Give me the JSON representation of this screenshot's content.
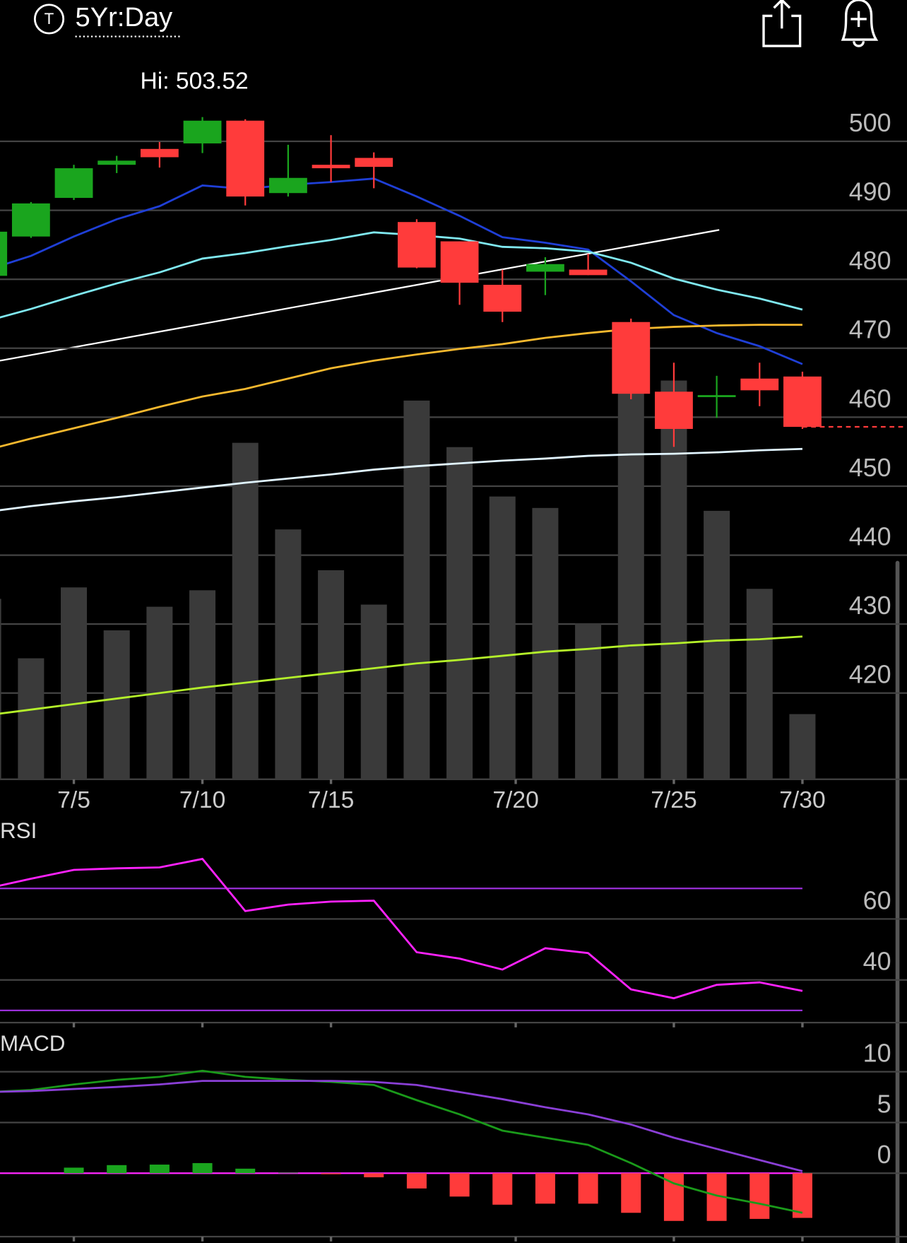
{
  "header": {
    "icon": "T",
    "range": "5Yr:Day"
  },
  "chart_data": [
    {
      "type": "candlestick",
      "annotation": "Hi: 503.52",
      "x": [
        0,
        1,
        2,
        3,
        4,
        5,
        6,
        7,
        8,
        9,
        10,
        11,
        12,
        13,
        14,
        15,
        16,
        17,
        18,
        19
      ],
      "open": [
        480.5,
        486.2,
        491.8,
        496.6,
        498.9,
        499.7,
        503.0,
        492.5,
        496.6,
        497.6,
        488.3,
        485.5,
        479.2,
        481.1,
        481.4,
        473.8,
        463.7,
        463.0,
        465.6,
        465.9
      ],
      "high": [
        487.2,
        491.2,
        496.6,
        497.9,
        499.9,
        503.52,
        503.2,
        499.5,
        500.9,
        498.4,
        488.7,
        485.5,
        481.4,
        483.2,
        483.7,
        474.3,
        467.9,
        466.0,
        467.9,
        466.6
      ],
      "low": [
        480.0,
        486.0,
        491.5,
        495.4,
        496.2,
        498.3,
        490.7,
        492.0,
        494.1,
        493.2,
        481.6,
        476.3,
        473.8,
        477.7,
        480.6,
        462.6,
        455.7,
        459.9,
        461.6,
        458.3
      ],
      "close": [
        486.9,
        491.0,
        496.1,
        497.2,
        497.7,
        503.0,
        492.0,
        494.7,
        496.1,
        496.3,
        481.7,
        479.5,
        475.3,
        482.2,
        480.6,
        463.4,
        458.3,
        463.2,
        463.9,
        458.6
      ],
      "up_color": "#1aa51e",
      "down_color": "#ff3b3b",
      "series": [
        {
          "color": "#1f3fd6",
          "values": [
            481.4,
            483.4,
            486.2,
            488.7,
            490.6,
            493.6,
            493.1,
            493.7,
            494.1,
            494.6,
            492.0,
            489.2,
            486.1,
            485.3,
            484.3,
            479.7,
            474.8,
            472.2,
            470.3,
            467.7
          ]
        },
        {
          "color": "#7fe8f0",
          "values": [
            474.0,
            475.7,
            477.6,
            479.4,
            481.0,
            483.0,
            483.8,
            484.8,
            485.7,
            486.8,
            486.4,
            485.9,
            484.7,
            484.5,
            484.0,
            482.4,
            480.1,
            478.5,
            477.2,
            475.6
          ]
        },
        {
          "color": "#f5b82e",
          "values": [
            455.3,
            456.9,
            458.4,
            459.9,
            461.5,
            463.0,
            464.1,
            465.6,
            467.1,
            468.2,
            469.1,
            469.9,
            470.6,
            471.5,
            472.2,
            472.8,
            473.1,
            473.3,
            473.4,
            473.4
          ]
        },
        {
          "color": "#e0f4ff",
          "values": [
            446.3,
            447.1,
            447.8,
            448.4,
            449.1,
            449.8,
            450.5,
            451.1,
            451.7,
            452.4,
            452.9,
            453.3,
            453.7,
            454.0,
            454.4,
            454.6,
            454.7,
            454.9,
            455.2,
            455.4
          ]
        },
        {
          "color": "#b4f02a",
          "values": [
            416.8,
            417.6,
            418.4,
            419.2,
            420.0,
            420.8,
            421.5,
            422.2,
            422.9,
            423.6,
            424.3,
            424.8,
            425.4,
            426.0,
            426.4,
            426.9,
            427.2,
            427.6,
            427.8,
            428.2
          ]
        }
      ],
      "volume": {
        "color": "#3a3a3a",
        "axis": "y2",
        "values": [
          25.2,
          16.9,
          26.8,
          20.8,
          24.1,
          26.4,
          47.0,
          34.9,
          29.2,
          24.4,
          52.9,
          46.4,
          39.5,
          37.9,
          21.8,
          55.9,
          55.7,
          37.5,
          26.6,
          9.1
        ]
      },
      "xlim": [
        0.277,
        21.44
      ],
      "xticks": [
        {
          "value": 2,
          "label": "7/5"
        },
        {
          "value": 5,
          "label": "7/10"
        },
        {
          "value": 8,
          "label": "7/15"
        },
        {
          "value": 12.31,
          "label": "7/20"
        },
        {
          "value": 16,
          "label": "7/25"
        },
        {
          "value": 19,
          "label": "7/30"
        }
      ],
      "ylim": [
        407.5,
        511.3
      ],
      "yticks": [
        420,
        430,
        440,
        450,
        460,
        470,
        480,
        490,
        500
      ],
      "y2lim": [
        0,
        100
      ],
      "grid": true
    },
    {
      "type": "line",
      "title": "RSI",
      "x": [
        0,
        1,
        2,
        3,
        4,
        5,
        6,
        7,
        8,
        9,
        10,
        11,
        12,
        13,
        14,
        15,
        16,
        17,
        18,
        19
      ],
      "series": [
        {
          "color": "#ff22ff",
          "values": [
            70.1,
            73.2,
            76.1,
            76.6,
            76.9,
            79.7,
            62.6,
            64.7,
            65.7,
            66.0,
            49.1,
            47.0,
            43.4,
            50.4,
            48.8,
            36.9,
            34.0,
            38.4,
            39.2,
            36.4
          ]
        }
      ],
      "levels": [
        70,
        30
      ],
      "level_color": "#9b30d9",
      "xlim": [
        0.277,
        21.44
      ],
      "ylim": [
        26,
        91
      ],
      "yticks": [
        40,
        60
      ],
      "grid": true
    },
    {
      "type": "macd",
      "title": "MACD",
      "x": [
        0,
        1,
        2,
        3,
        4,
        5,
        6,
        7,
        8,
        9,
        10,
        11,
        12,
        13,
        14,
        15,
        16,
        17,
        18,
        19
      ],
      "series": [
        {
          "color": "#1a9a1a",
          "values": [
            8.0,
            8.2,
            8.75,
            9.2,
            9.5,
            10.1,
            9.5,
            9.2,
            9.0,
            8.7,
            7.2,
            5.8,
            4.2,
            3.5,
            2.8,
            1.0,
            -1.0,
            -2.2,
            -3.0,
            -3.9
          ]
        },
        {
          "color": "#8a3fd6",
          "values": [
            8.0,
            8.1,
            8.3,
            8.5,
            8.75,
            9.1,
            9.1,
            9.1,
            9.1,
            9.0,
            8.7,
            8.0,
            7.3,
            6.5,
            5.8,
            4.8,
            3.5,
            2.4,
            1.3,
            0.2
          ]
        }
      ],
      "histogram": [
        0,
        0,
        0.55,
        0.8,
        0.85,
        1.0,
        0.45,
        0.05,
        -0.1,
        -0.4,
        -1.5,
        -2.3,
        -3.1,
        -3.0,
        -3.0,
        -3.9,
        -4.7,
        -4.7,
        -4.5,
        -4.4
      ],
      "hist_up_color": "#1aa51e",
      "hist_down_color": "#ff3b3b",
      "levels": [
        0
      ],
      "level_color": "#ff22ff",
      "xlim": [
        0.277,
        21.44
      ],
      "ylim": [
        -6.25,
        13.67
      ],
      "yticks": [
        0,
        5,
        10
      ],
      "grid": true
    }
  ]
}
